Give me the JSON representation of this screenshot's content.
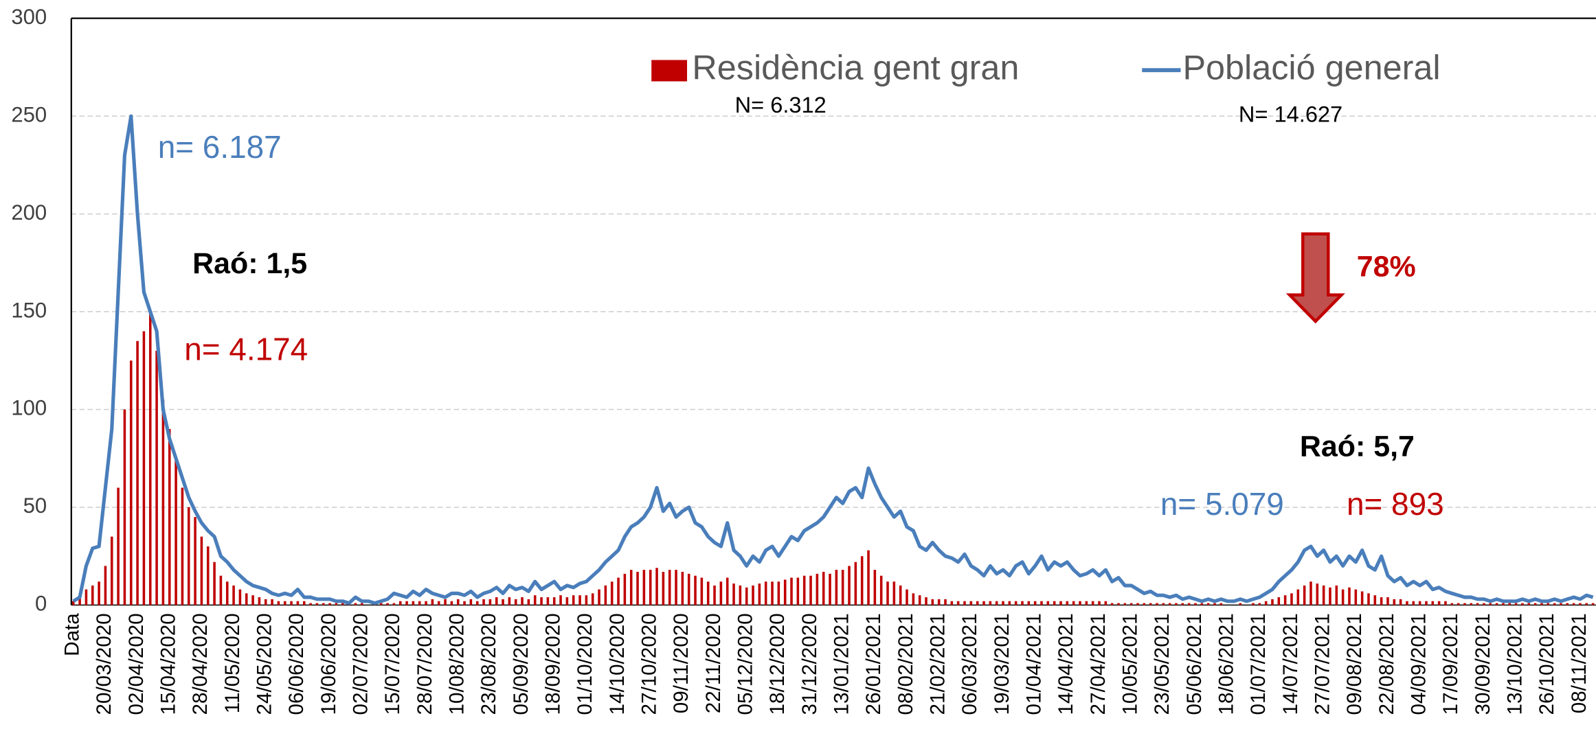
{
  "chart_data": {
    "type": "bar-line",
    "categories": [
      "Data",
      null,
      null,
      null,
      null,
      "20/03/2020",
      null,
      null,
      null,
      null,
      "02/04/2020",
      null,
      null,
      null,
      null,
      "15/04/2020",
      null,
      null,
      null,
      null,
      "28/04/2020",
      null,
      null,
      null,
      null,
      "11/05/2020",
      null,
      null,
      null,
      null,
      "24/05/2020",
      null,
      null,
      null,
      null,
      "06/06/2020",
      null,
      null,
      null,
      null,
      "19/06/2020",
      null,
      null,
      null,
      null,
      "02/07/2020",
      null,
      null,
      null,
      null,
      "15/07/2020",
      null,
      null,
      null,
      null,
      "28/07/2020",
      null,
      null,
      null,
      null,
      "10/08/2020",
      null,
      null,
      null,
      null,
      "23/08/2020",
      null,
      null,
      null,
      null,
      "05/09/2020",
      null,
      null,
      null,
      null,
      "18/09/2020",
      null,
      null,
      null,
      null,
      "01/10/2020",
      null,
      null,
      null,
      null,
      "14/10/2020",
      null,
      null,
      null,
      null,
      "27/10/2020",
      null,
      null,
      null,
      null,
      "09/11/2020",
      null,
      null,
      null,
      null,
      "22/11/2020",
      null,
      null,
      null,
      null,
      "05/12/2020",
      null,
      null,
      null,
      null,
      "18/12/2020",
      null,
      null,
      null,
      null,
      "31/12/2020",
      null,
      null,
      null,
      null,
      "13/01/2021",
      null,
      null,
      null,
      null,
      "26/01/2021",
      null,
      null,
      null,
      null,
      "08/02/2021",
      null,
      null,
      null,
      null,
      "21/02/2021",
      null,
      null,
      null,
      null,
      "06/03/2021",
      null,
      null,
      null,
      null,
      "19/03/2021",
      null,
      null,
      null,
      null,
      "01/04/2021",
      null,
      null,
      null,
      null,
      "14/04/2021",
      null,
      null,
      null,
      null,
      "27/04/2021",
      null,
      null,
      null,
      null,
      "10/05/2021",
      null,
      null,
      null,
      null,
      "23/05/2021",
      null,
      null,
      null,
      null,
      "05/06/2021",
      null,
      null,
      null,
      null,
      "18/06/2021",
      null,
      null,
      null,
      null,
      "01/07/2021",
      null,
      null,
      null,
      null,
      "14/07/2021",
      null,
      null,
      null,
      null,
      "27/07/2021",
      null,
      null,
      null,
      null,
      "09/08/2021",
      null,
      null,
      null,
      null,
      "22/08/2021",
      null,
      null,
      null,
      null,
      "04/09/2021",
      null,
      null,
      null,
      null,
      "17/09/2021",
      null,
      null,
      null,
      null,
      "30/09/2021",
      null,
      null,
      null,
      null,
      "13/10/2021",
      null,
      null,
      null,
      null,
      "26/10/2021",
      null,
      null,
      null,
      null,
      "08/11/2021",
      null,
      null
    ],
    "series": [
      {
        "name": "Residència gent gran",
        "type": "bar",
        "color": "#c00000",
        "values": [
          2,
          5,
          8,
          10,
          12,
          20,
          35,
          60,
          100,
          125,
          135,
          140,
          150,
          130,
          105,
          90,
          75,
          60,
          50,
          45,
          35,
          30,
          22,
          15,
          12,
          10,
          8,
          6,
          5,
          4,
          3,
          3,
          2,
          2,
          2,
          2,
          2,
          1,
          1,
          1,
          1,
          1,
          1,
          1,
          1,
          1,
          0,
          1,
          1,
          1,
          1,
          2,
          2,
          2,
          2,
          2,
          3,
          2,
          3,
          2,
          3,
          2,
          3,
          2,
          3,
          3,
          4,
          3,
          4,
          3,
          4,
          3,
          5,
          4,
          4,
          4,
          5,
          4,
          5,
          5,
          5,
          6,
          8,
          10,
          12,
          14,
          16,
          18,
          17,
          18,
          18,
          19,
          17,
          18,
          18,
          17,
          16,
          15,
          14,
          12,
          10,
          12,
          14,
          11,
          10,
          9,
          10,
          11,
          12,
          12,
          12,
          13,
          14,
          14,
          15,
          15,
          16,
          17,
          16,
          18,
          18,
          20,
          22,
          25,
          28,
          18,
          15,
          12,
          12,
          10,
          8,
          6,
          5,
          4,
          3,
          3,
          3,
          2,
          2,
          2,
          2,
          2,
          2,
          2,
          2,
          2,
          2,
          2,
          2,
          2,
          2,
          2,
          2,
          2,
          2,
          2,
          2,
          2,
          2,
          2,
          2,
          2,
          1,
          1,
          1,
          1,
          1,
          1,
          1,
          1,
          1,
          1,
          1,
          1,
          1,
          1,
          1,
          1,
          1,
          1,
          0,
          0,
          1,
          0,
          1,
          1,
          2,
          3,
          4,
          5,
          6,
          8,
          10,
          12,
          11,
          10,
          9,
          10,
          8,
          9,
          8,
          7,
          6,
          5,
          4,
          4,
          3,
          3,
          2,
          2,
          2,
          2,
          2,
          2,
          2,
          1,
          1,
          1,
          1,
          1,
          1,
          1,
          1,
          1,
          1,
          1,
          1,
          1,
          1,
          1,
          1,
          1,
          1,
          1,
          1,
          1,
          1,
          1
        ]
      },
      {
        "name": "Població general",
        "type": "line",
        "color": "#4a7ebb",
        "values": [
          2,
          4,
          20,
          29,
          30,
          60,
          90,
          160,
          230,
          250,
          200,
          160,
          150,
          140,
          100,
          85,
          75,
          65,
          55,
          48,
          42,
          38,
          35,
          25,
          22,
          18,
          15,
          12,
          10,
          9,
          8,
          6,
          5,
          6,
          5,
          8,
          4,
          4,
          3,
          3,
          3,
          2,
          2,
          1,
          4,
          2,
          2,
          1,
          2,
          3,
          6,
          5,
          4,
          7,
          5,
          8,
          6,
          5,
          4,
          6,
          6,
          5,
          7,
          4,
          6,
          7,
          9,
          6,
          10,
          8,
          9,
          7,
          12,
          8,
          10,
          12,
          8,
          10,
          9,
          11,
          12,
          15,
          18,
          22,
          25,
          28,
          35,
          40,
          42,
          45,
          50,
          60,
          48,
          52,
          45,
          48,
          50,
          42,
          40,
          35,
          32,
          30,
          42,
          28,
          25,
          20,
          25,
          22,
          28,
          30,
          25,
          30,
          35,
          33,
          38,
          40,
          42,
          45,
          50,
          55,
          52,
          58,
          60,
          55,
          70,
          62,
          55,
          50,
          45,
          48,
          40,
          38,
          30,
          28,
          32,
          28,
          25,
          24,
          22,
          26,
          20,
          18,
          15,
          20,
          16,
          18,
          15,
          20,
          22,
          16,
          20,
          25,
          18,
          22,
          20,
          22,
          18,
          15,
          16,
          18,
          15,
          18,
          12,
          14,
          10,
          10,
          8,
          6,
          7,
          5,
          5,
          4,
          5,
          3,
          4,
          3,
          2,
          3,
          2,
          3,
          2,
          2,
          3,
          2,
          3,
          4,
          6,
          8,
          12,
          15,
          18,
          22,
          28,
          30,
          25,
          28,
          22,
          25,
          20,
          25,
          22,
          28,
          20,
          18,
          25,
          15,
          12,
          14,
          10,
          12,
          10,
          12,
          8,
          9,
          7,
          6,
          5,
          4,
          4,
          3,
          3,
          2,
          3,
          2,
          2,
          2,
          3,
          2,
          3,
          2,
          2,
          3,
          2,
          3,
          4,
          3,
          5,
          4
        ]
      }
    ],
    "legend_notes": [
      "N= 6.312",
      "N= 14.627"
    ],
    "annotations": [
      {
        "text": "n= 6.187",
        "color": "#4a7ebb"
      },
      {
        "text": "Raó: 1,5",
        "color": "#000000"
      },
      {
        "text": "n= 4.174",
        "color": "#c00000"
      },
      {
        "text": "78%",
        "color": "#c00000"
      },
      {
        "text": "Raó: 5,7",
        "color": "#000000"
      },
      {
        "text": "n= 5.079",
        "color": "#4a7ebb"
      },
      {
        "text": "n= 893",
        "color": "#c00000"
      }
    ],
    "ylim": [
      0,
      300
    ],
    "yticks": [
      0,
      50,
      100,
      150,
      200,
      250,
      300
    ],
    "grid": true,
    "legend": "top"
  }
}
